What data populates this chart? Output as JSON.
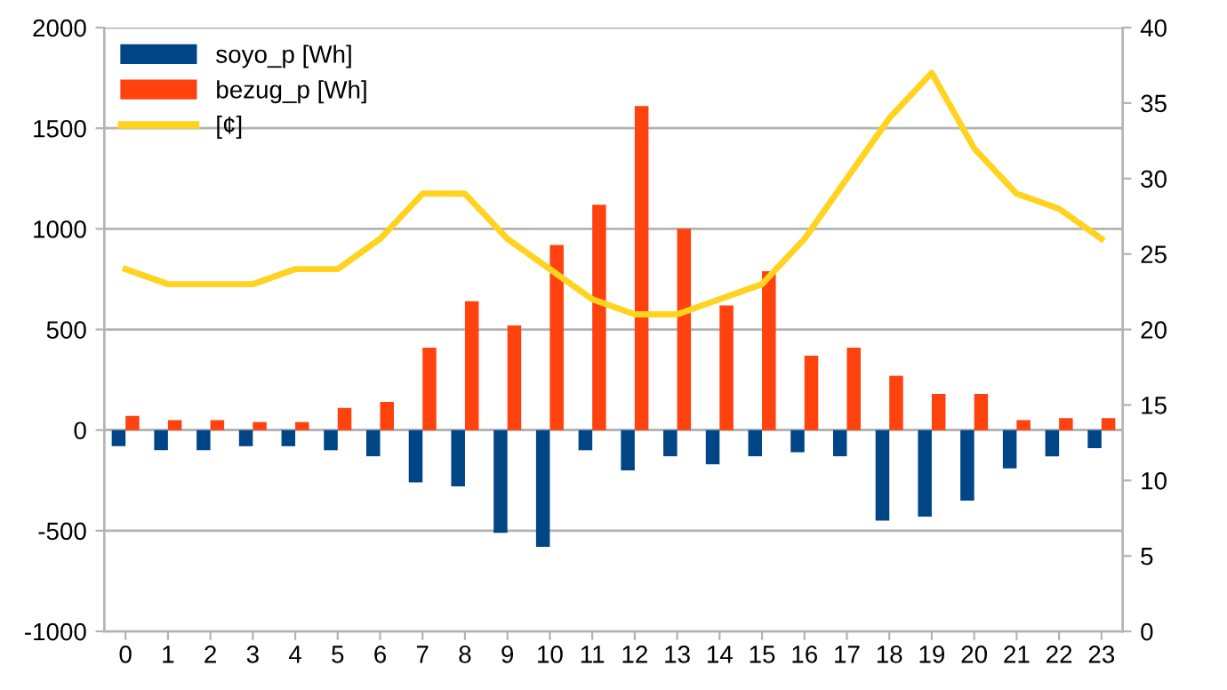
{
  "chart_data": {
    "type": "bar",
    "categories": [
      "0",
      "1",
      "2",
      "3",
      "4",
      "5",
      "6",
      "7",
      "8",
      "9",
      "10",
      "11",
      "12",
      "13",
      "14",
      "15",
      "16",
      "17",
      "18",
      "19",
      "20",
      "21",
      "22",
      "23"
    ],
    "series": [
      {
        "name": "soyo_p [Wh]",
        "color": "#004586",
        "values": [
          -80,
          -100,
          -100,
          -80,
          -80,
          -100,
          -130,
          -260,
          -280,
          -510,
          -580,
          -100,
          -200,
          -130,
          -170,
          -130,
          -110,
          -130,
          -450,
          -430,
          -350,
          -190,
          -130,
          -90
        ]
      },
      {
        "name": "bezug_p [Wh]",
        "color": "#ff420e",
        "values": [
          70,
          50,
          50,
          40,
          40,
          110,
          140,
          410,
          640,
          520,
          920,
          1120,
          1610,
          1000,
          620,
          790,
          370,
          410,
          270,
          180,
          180,
          50,
          60,
          60
        ]
      },
      {
        "name": "[¢]",
        "color": "#ffd320",
        "type": "line",
        "axis": "y2",
        "values": [
          24,
          23,
          23,
          23,
          24,
          24,
          26,
          29,
          29,
          26,
          24,
          22,
          21,
          21,
          22,
          23,
          26,
          30,
          34,
          37,
          32,
          29,
          28,
          26
        ]
      }
    ],
    "ylim": [
      -1000,
      2000
    ],
    "yticks": [
      -1000,
      -500,
      0,
      500,
      1000,
      1500,
      2000
    ],
    "y2lim": [
      0,
      40
    ],
    "y2ticks": [
      0,
      5,
      10,
      15,
      20,
      25,
      30,
      35,
      40
    ],
    "grid": "y",
    "legend": "top left",
    "marker": "none",
    "line_style": "solid"
  }
}
